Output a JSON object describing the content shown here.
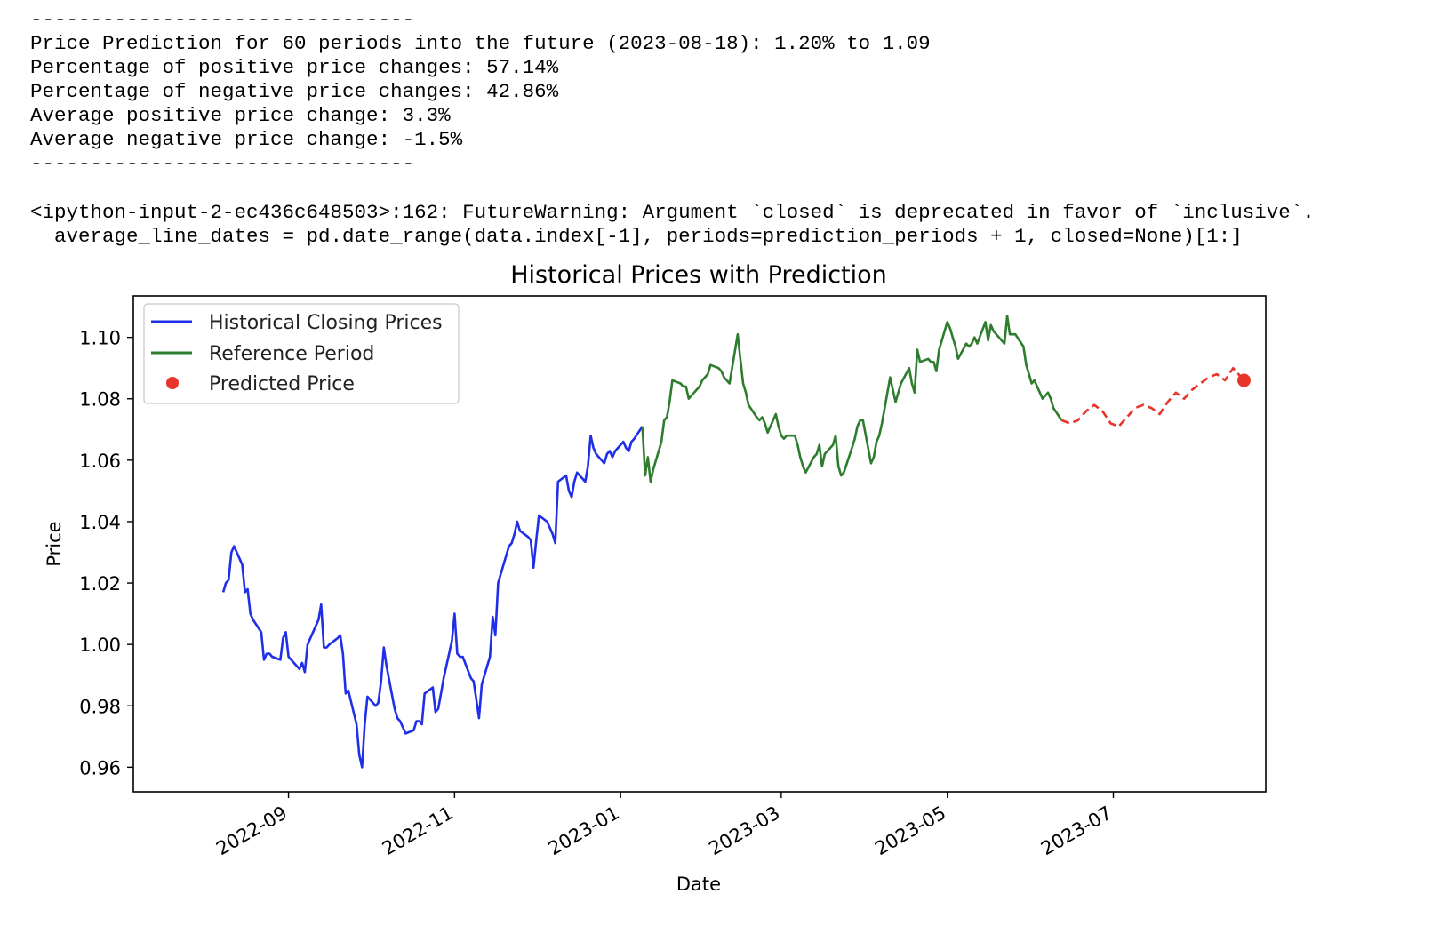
{
  "console": {
    "separator_top": "--------------------------------",
    "line_prediction": "Price Prediction for 60 periods into the future (2023-08-18): 1.20% to 1.09",
    "line_pos_pct": "Percentage of positive price changes: 57.14%",
    "line_neg_pct": "Percentage of negative price changes: 42.86%",
    "line_avg_pos": "Average positive price change: 3.3%",
    "line_avg_neg": "Average negative price change: -1.5%",
    "separator_bottom": "--------------------------------",
    "warning_line1": "<ipython-input-2-ec436c648503>:162: FutureWarning: Argument `closed` is deprecated in favor of `inclusive`.",
    "warning_line2": "  average_line_dates = pd.date_range(data.index[-1], periods=prediction_periods + 1, closed=None)[1:]"
  },
  "colors": {
    "historical": "#1f2fe8",
    "reference": "#2e7d2e",
    "prediction": "#e8352c"
  },
  "chart_data": {
    "type": "line",
    "title": "Historical Prices with Prediction",
    "xlabel": "Date",
    "ylabel": "Price",
    "xlim": [
      "2022-07-06",
      "2023-08-26"
    ],
    "ylim": [
      0.952,
      1.1135
    ],
    "yticks": [
      0.96,
      0.98,
      1.0,
      1.02,
      1.04,
      1.06,
      1.08,
      1.1
    ],
    "ytick_labels": [
      "0.96",
      "0.98",
      "1.00",
      "1.02",
      "1.04",
      "1.06",
      "1.08",
      "1.10"
    ],
    "xticks": [
      "2022-09-01",
      "2022-11-01",
      "2023-01-01",
      "2023-03-01",
      "2023-05-01",
      "2023-07-01"
    ],
    "xtick_labels": [
      "2022-09",
      "2022-11",
      "2023-01",
      "2023-03",
      "2023-05",
      "2023-07"
    ],
    "legend_position": "top-left",
    "series": [
      {
        "name": "Historical Closing Prices",
        "style": "solid",
        "points": [
          [
            "2022-08-08",
            1.017
          ],
          [
            "2022-08-09",
            1.02
          ],
          [
            "2022-08-10",
            1.021
          ],
          [
            "2022-08-11",
            1.03
          ],
          [
            "2022-08-12",
            1.032
          ],
          [
            "2022-08-15",
            1.026
          ],
          [
            "2022-08-16",
            1.017
          ],
          [
            "2022-08-17",
            1.018
          ],
          [
            "2022-08-18",
            1.01
          ],
          [
            "2022-08-19",
            1.008
          ],
          [
            "2022-08-22",
            1.004
          ],
          [
            "2022-08-23",
            0.995
          ],
          [
            "2022-08-24",
            0.997
          ],
          [
            "2022-08-25",
            0.997
          ],
          [
            "2022-08-26",
            0.996
          ],
          [
            "2022-08-29",
            0.995
          ],
          [
            "2022-08-30",
            1.002
          ],
          [
            "2022-08-31",
            1.004
          ],
          [
            "2022-09-01",
            0.996
          ],
          [
            "2022-09-02",
            0.995
          ],
          [
            "2022-09-05",
            0.992
          ],
          [
            "2022-09-06",
            0.994
          ],
          [
            "2022-09-07",
            0.991
          ],
          [
            "2022-09-08",
            1.0
          ],
          [
            "2022-09-09",
            1.002
          ],
          [
            "2022-09-12",
            1.008
          ],
          [
            "2022-09-13",
            1.013
          ],
          [
            "2022-09-14",
            0.999
          ],
          [
            "2022-09-15",
            0.999
          ],
          [
            "2022-09-16",
            1.0
          ],
          [
            "2022-09-19",
            1.002
          ],
          [
            "2022-09-20",
            1.003
          ],
          [
            "2022-09-21",
            0.997
          ],
          [
            "2022-09-22",
            0.984
          ],
          [
            "2022-09-23",
            0.985
          ],
          [
            "2022-09-26",
            0.974
          ],
          [
            "2022-09-27",
            0.964
          ],
          [
            "2022-09-28",
            0.96
          ],
          [
            "2022-09-29",
            0.974
          ],
          [
            "2022-09-30",
            0.983
          ],
          [
            "2022-10-03",
            0.98
          ],
          [
            "2022-10-04",
            0.981
          ],
          [
            "2022-10-05",
            0.988
          ],
          [
            "2022-10-06",
            0.999
          ],
          [
            "2022-10-07",
            0.993
          ],
          [
            "2022-10-10",
            0.979
          ],
          [
            "2022-10-11",
            0.976
          ],
          [
            "2022-10-12",
            0.975
          ],
          [
            "2022-10-13",
            0.973
          ],
          [
            "2022-10-14",
            0.971
          ],
          [
            "2022-10-17",
            0.972
          ],
          [
            "2022-10-18",
            0.975
          ],
          [
            "2022-10-19",
            0.975
          ],
          [
            "2022-10-20",
            0.974
          ],
          [
            "2022-10-21",
            0.984
          ],
          [
            "2022-10-24",
            0.986
          ],
          [
            "2022-10-25",
            0.978
          ],
          [
            "2022-10-26",
            0.979
          ],
          [
            "2022-10-27",
            0.984
          ],
          [
            "2022-10-28",
            0.989
          ],
          [
            "2022-10-31",
            1.001
          ],
          [
            "2022-11-01",
            1.01
          ],
          [
            "2022-11-02",
            0.997
          ],
          [
            "2022-11-03",
            0.996
          ],
          [
            "2022-11-04",
            0.996
          ],
          [
            "2022-11-07",
            0.989
          ],
          [
            "2022-11-08",
            0.988
          ],
          [
            "2022-11-09",
            0.982
          ],
          [
            "2022-11-10",
            0.976
          ],
          [
            "2022-11-11",
            0.987
          ],
          [
            "2022-11-14",
            0.996
          ],
          [
            "2022-11-15",
            1.009
          ],
          [
            "2022-11-16",
            1.003
          ],
          [
            "2022-11-17",
            1.02
          ],
          [
            "2022-11-18",
            1.023
          ],
          [
            "2022-11-21",
            1.032
          ],
          [
            "2022-11-22",
            1.033
          ],
          [
            "2022-11-23",
            1.036
          ],
          [
            "2022-11-24",
            1.04
          ],
          [
            "2022-11-25",
            1.037
          ],
          [
            "2022-11-28",
            1.035
          ],
          [
            "2022-11-29",
            1.034
          ],
          [
            "2022-11-30",
            1.025
          ],
          [
            "2022-12-01",
            1.034
          ],
          [
            "2022-12-02",
            1.042
          ],
          [
            "2022-12-05",
            1.04
          ],
          [
            "2022-12-06",
            1.038
          ],
          [
            "2022-12-07",
            1.036
          ],
          [
            "2022-12-08",
            1.033
          ],
          [
            "2022-12-09",
            1.053
          ],
          [
            "2022-12-12",
            1.055
          ],
          [
            "2022-12-13",
            1.05
          ],
          [
            "2022-12-14",
            1.048
          ],
          [
            "2022-12-15",
            1.053
          ],
          [
            "2022-12-16",
            1.056
          ],
          [
            "2022-12-19",
            1.053
          ],
          [
            "2022-12-20",
            1.058
          ],
          [
            "2022-12-21",
            1.068
          ],
          [
            "2022-12-22",
            1.064
          ],
          [
            "2022-12-23",
            1.062
          ],
          [
            "2022-12-26",
            1.059
          ],
          [
            "2022-12-27",
            1.062
          ],
          [
            "2022-12-28",
            1.063
          ],
          [
            "2022-12-29",
            1.061
          ],
          [
            "2022-12-30",
            1.063
          ],
          [
            "2023-01-02",
            1.066
          ],
          [
            "2023-01-03",
            1.064
          ],
          [
            "2023-01-04",
            1.063
          ],
          [
            "2023-01-05",
            1.066
          ],
          [
            "2023-01-06",
            1.067
          ],
          [
            "2023-01-09",
            1.071
          ]
        ]
      },
      {
        "name": "Reference Period",
        "style": "solid",
        "points": [
          [
            "2023-01-09",
            1.071
          ],
          [
            "2023-01-10",
            1.055
          ],
          [
            "2023-01-11",
            1.061
          ],
          [
            "2023-01-12",
            1.053
          ],
          [
            "2023-01-13",
            1.057
          ],
          [
            "2023-01-16",
            1.066
          ],
          [
            "2023-01-17",
            1.073
          ],
          [
            "2023-01-18",
            1.074
          ],
          [
            "2023-01-19",
            1.079
          ],
          [
            "2023-01-20",
            1.086
          ],
          [
            "2023-01-23",
            1.085
          ],
          [
            "2023-01-24",
            1.084
          ],
          [
            "2023-01-25",
            1.084
          ],
          [
            "2023-01-26",
            1.08
          ],
          [
            "2023-01-27",
            1.081
          ],
          [
            "2023-01-30",
            1.084
          ],
          [
            "2023-01-31",
            1.086
          ],
          [
            "2023-02-01",
            1.087
          ],
          [
            "2023-02-02",
            1.088
          ],
          [
            "2023-02-03",
            1.091
          ],
          [
            "2023-02-06",
            1.09
          ],
          [
            "2023-02-07",
            1.089
          ],
          [
            "2023-02-08",
            1.087
          ],
          [
            "2023-02-09",
            1.086
          ],
          [
            "2023-02-10",
            1.085
          ],
          [
            "2023-02-13",
            1.101
          ],
          [
            "2023-02-14",
            1.093
          ],
          [
            "2023-02-15",
            1.085
          ],
          [
            "2023-02-16",
            1.082
          ],
          [
            "2023-02-17",
            1.078
          ],
          [
            "2023-02-20",
            1.074
          ],
          [
            "2023-02-21",
            1.073
          ],
          [
            "2023-02-22",
            1.074
          ],
          [
            "2023-02-23",
            1.072
          ],
          [
            "2023-02-24",
            1.069
          ],
          [
            "2023-02-27",
            1.075
          ],
          [
            "2023-02-28",
            1.071
          ],
          [
            "2023-03-01",
            1.068
          ],
          [
            "2023-03-02",
            1.067
          ],
          [
            "2023-03-03",
            1.068
          ],
          [
            "2023-03-06",
            1.068
          ],
          [
            "2023-03-07",
            1.065
          ],
          [
            "2023-03-08",
            1.061
          ],
          [
            "2023-03-09",
            1.058
          ],
          [
            "2023-03-10",
            1.056
          ],
          [
            "2023-03-13",
            1.061
          ],
          [
            "2023-03-14",
            1.062
          ],
          [
            "2023-03-15",
            1.065
          ],
          [
            "2023-03-16",
            1.058
          ],
          [
            "2023-03-17",
            1.062
          ],
          [
            "2023-03-20",
            1.065
          ],
          [
            "2023-03-21",
            1.068
          ],
          [
            "2023-03-22",
            1.058
          ],
          [
            "2023-03-23",
            1.055
          ],
          [
            "2023-03-24",
            1.056
          ],
          [
            "2023-03-27",
            1.064
          ],
          [
            "2023-03-28",
            1.067
          ],
          [
            "2023-03-29",
            1.071
          ],
          [
            "2023-03-30",
            1.073
          ],
          [
            "2023-03-31",
            1.073
          ],
          [
            "2023-04-03",
            1.059
          ],
          [
            "2023-04-04",
            1.061
          ],
          [
            "2023-04-05",
            1.066
          ],
          [
            "2023-04-06",
            1.068
          ],
          [
            "2023-04-07",
            1.072
          ],
          [
            "2023-04-10",
            1.087
          ],
          [
            "2023-04-11",
            1.083
          ],
          [
            "2023-04-12",
            1.079
          ],
          [
            "2023-04-13",
            1.082
          ],
          [
            "2023-04-14",
            1.085
          ],
          [
            "2023-04-17",
            1.09
          ],
          [
            "2023-04-18",
            1.085
          ],
          [
            "2023-04-19",
            1.082
          ],
          [
            "2023-04-20",
            1.096
          ],
          [
            "2023-04-21",
            1.092
          ],
          [
            "2023-04-24",
            1.093
          ],
          [
            "2023-04-25",
            1.092
          ],
          [
            "2023-04-26",
            1.092
          ],
          [
            "2023-04-27",
            1.089
          ],
          [
            "2023-04-28",
            1.096
          ],
          [
            "2023-05-01",
            1.105
          ],
          [
            "2023-05-02",
            1.103
          ],
          [
            "2023-05-03",
            1.1
          ],
          [
            "2023-05-04",
            1.097
          ],
          [
            "2023-05-05",
            1.093
          ],
          [
            "2023-05-08",
            1.098
          ],
          [
            "2023-05-09",
            1.097
          ],
          [
            "2023-05-10",
            1.098
          ],
          [
            "2023-05-11",
            1.1
          ],
          [
            "2023-05-12",
            1.098
          ],
          [
            "2023-05-15",
            1.105
          ],
          [
            "2023-05-16",
            1.099
          ],
          [
            "2023-05-17",
            1.104
          ],
          [
            "2023-05-18",
            1.102
          ],
          [
            "2023-05-19",
            1.101
          ],
          [
            "2023-05-22",
            1.098
          ],
          [
            "2023-05-23",
            1.107
          ],
          [
            "2023-05-24",
            1.101
          ],
          [
            "2023-05-25",
            1.101
          ],
          [
            "2023-05-26",
            1.101
          ],
          [
            "2023-05-29",
            1.097
          ],
          [
            "2023-05-30",
            1.091
          ],
          [
            "2023-05-31",
            1.088
          ],
          [
            "2023-06-01",
            1.085
          ],
          [
            "2023-06-02",
            1.086
          ],
          [
            "2023-06-05",
            1.08
          ],
          [
            "2023-06-06",
            1.081
          ],
          [
            "2023-06-07",
            1.082
          ],
          [
            "2023-06-08",
            1.08
          ],
          [
            "2023-06-09",
            1.077
          ],
          [
            "2023-06-12",
            1.073
          ]
        ]
      },
      {
        "name": "",
        "style": "dashed",
        "points": [
          [
            "2023-06-12",
            1.073
          ],
          [
            "2023-06-15",
            1.072
          ],
          [
            "2023-06-18",
            1.073
          ],
          [
            "2023-06-21",
            1.076
          ],
          [
            "2023-06-24",
            1.078
          ],
          [
            "2023-06-27",
            1.076
          ],
          [
            "2023-06-30",
            1.072
          ],
          [
            "2023-07-03",
            1.071
          ],
          [
            "2023-07-06",
            1.074
          ],
          [
            "2023-07-09",
            1.077
          ],
          [
            "2023-07-12",
            1.078
          ],
          [
            "2023-07-15",
            1.077
          ],
          [
            "2023-07-18",
            1.075
          ],
          [
            "2023-07-21",
            1.079
          ],
          [
            "2023-07-24",
            1.082
          ],
          [
            "2023-07-27",
            1.08
          ],
          [
            "2023-07-30",
            1.083
          ],
          [
            "2023-08-02",
            1.085
          ],
          [
            "2023-08-05",
            1.087
          ],
          [
            "2023-08-08",
            1.088
          ],
          [
            "2023-08-11",
            1.086
          ],
          [
            "2023-08-14",
            1.09
          ],
          [
            "2023-08-18",
            1.086
          ]
        ]
      },
      {
        "name": "Predicted Price",
        "style": "marker",
        "points": [
          [
            "2023-08-18",
            1.086
          ]
        ]
      }
    ]
  }
}
